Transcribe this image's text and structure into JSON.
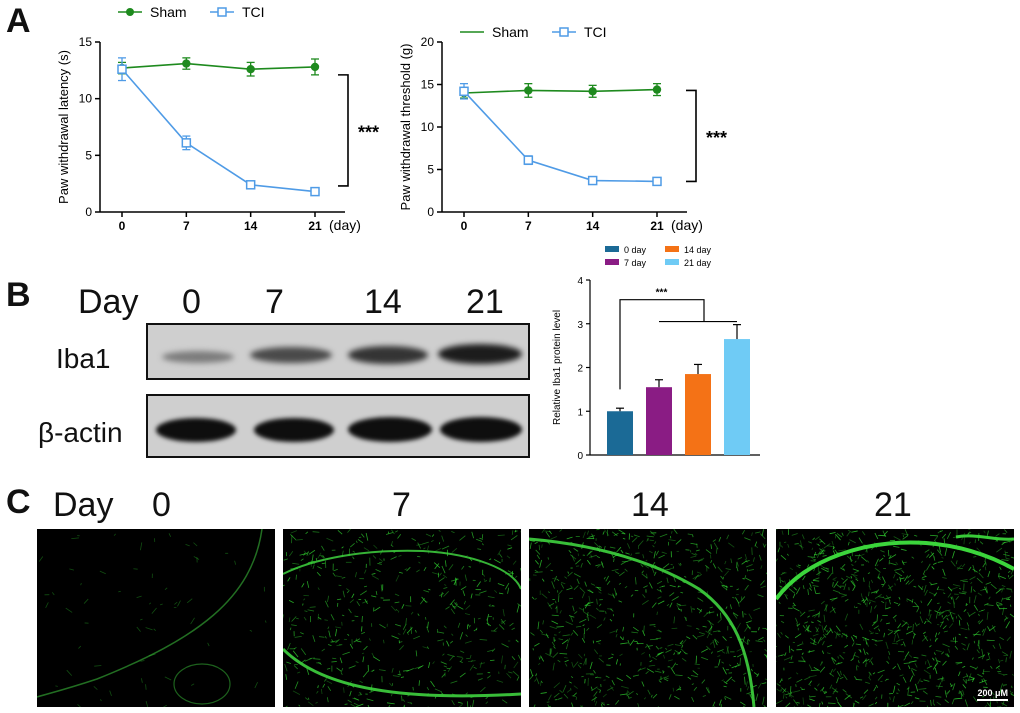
{
  "panel_labels": [
    "A",
    "B",
    "C"
  ],
  "legend": {
    "sham": "Sham",
    "tci": "TCI"
  },
  "colors": {
    "sham": "#1e8a1e",
    "tci": "#4f9be6",
    "bar0": "#1b6a96",
    "bar7": "#8a1c84",
    "bar14": "#f47216",
    "bar21": "#6fcbf5",
    "fluor": "#33dd33"
  },
  "chart_data": [
    {
      "type": "line",
      "ylabel": "Paw withdrawal latency (s)",
      "xunit": "(day)",
      "x": [
        0,
        7,
        14,
        21
      ],
      "xticks": [
        "0",
        "7",
        "14",
        "21"
      ],
      "ylim": [
        0,
        15
      ],
      "yticks": [
        "0",
        "5",
        "10",
        "15"
      ],
      "series": [
        {
          "name": "Sham",
          "values": [
            12.7,
            13.1,
            12.6,
            12.8
          ],
          "errors": [
            0.5,
            0.5,
            0.6,
            0.7
          ]
        },
        {
          "name": "TCI",
          "values": [
            12.6,
            6.1,
            2.4,
            1.8
          ],
          "errors": [
            1.0,
            0.6,
            0.3,
            0.3
          ]
        }
      ],
      "significance": "***"
    },
    {
      "type": "line",
      "ylabel": "Paw withdrawal threshold (g)",
      "xunit": "(day)",
      "x": [
        0,
        7,
        14,
        21
      ],
      "xticks": [
        "0",
        "7",
        "14",
        "21"
      ],
      "ylim": [
        0,
        20
      ],
      "yticks": [
        "0",
        "5",
        "10",
        "15",
        "20"
      ],
      "series": [
        {
          "name": "Sham",
          "values": [
            14.0,
            14.3,
            14.2,
            14.4
          ],
          "errors": [
            0.6,
            0.8,
            0.7,
            0.7
          ]
        },
        {
          "name": "TCI",
          "values": [
            14.2,
            6.1,
            3.7,
            3.6
          ],
          "errors": [
            0.9,
            0.5,
            0.4,
            0.3
          ]
        }
      ],
      "significance": "***"
    },
    {
      "type": "bar",
      "ylabel": "Relative Iba1 protein level",
      "categories": [
        "0 day",
        "7 day",
        "14 day",
        "21 day"
      ],
      "values": [
        1.0,
        1.55,
        1.85,
        2.65
      ],
      "errors": [
        0.07,
        0.17,
        0.22,
        0.33
      ],
      "ylim": [
        0,
        4
      ],
      "yticks": [
        "0",
        "1",
        "2",
        "3",
        "4"
      ],
      "significance": "***"
    }
  ],
  "western": {
    "day_label": "Day",
    "days": [
      "0",
      "7",
      "14",
      "21"
    ],
    "rows": [
      "Iba1",
      "β-actin"
    ]
  },
  "micro": {
    "day_label": "Day",
    "days": [
      "0",
      "7",
      "14",
      "21"
    ],
    "scale": "200 μM"
  }
}
